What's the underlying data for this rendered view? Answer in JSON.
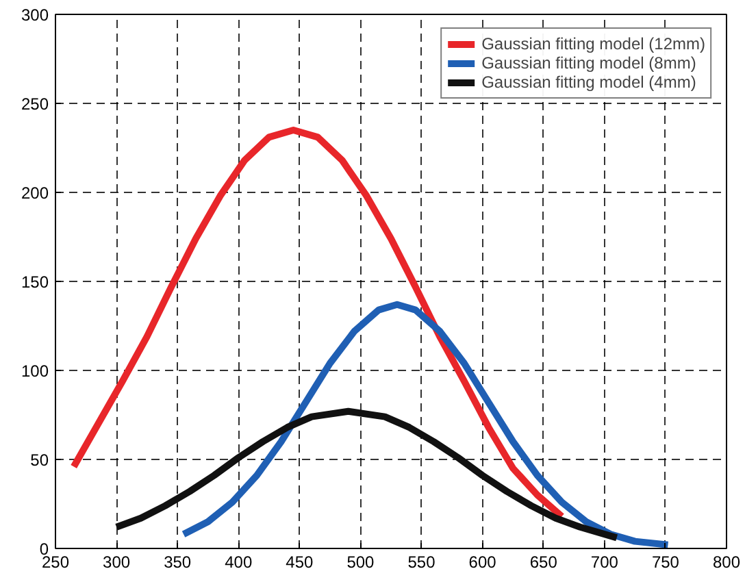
{
  "chart_data": {
    "type": "line",
    "xlim": [
      250,
      800
    ],
    "ylim": [
      0,
      300
    ],
    "xticks": [
      250,
      300,
      350,
      400,
      450,
      500,
      550,
      600,
      650,
      700,
      750,
      800
    ],
    "yticks": [
      0,
      50,
      100,
      150,
      200,
      250,
      300
    ],
    "grid": true,
    "legend": "top right",
    "line_style": "solid",
    "series": [
      {
        "name": "Gaussian fitting model (12mm)",
        "color": "#e8262a",
        "x": [
          265,
          285,
          305,
          325,
          345,
          365,
          385,
          405,
          425,
          445,
          465,
          485,
          505,
          525,
          545,
          565,
          585,
          605,
          625,
          645,
          665
        ],
        "values": [
          46,
          70,
          94,
          119,
          147,
          174,
          198,
          218,
          231,
          235,
          231,
          218,
          198,
          174,
          147,
          119,
          94,
          68,
          45,
          30,
          18
        ]
      },
      {
        "name": "Gaussian fitting model (8mm)",
        "color": "#1f5fb4",
        "x": [
          355,
          375,
          395,
          415,
          435,
          455,
          475,
          495,
          515,
          530,
          545,
          565,
          585,
          605,
          625,
          645,
          665,
          685,
          705,
          725,
          752
        ],
        "values": [
          8,
          15,
          26,
          41,
          60,
          82,
          104,
          122,
          134,
          137,
          134,
          122,
          104,
          82,
          60,
          41,
          26,
          15,
          8,
          4,
          2
        ]
      },
      {
        "name": "Gaussian fitting model (4mm)",
        "color": "#111111",
        "x": [
          300,
          320,
          340,
          360,
          380,
          400,
          420,
          440,
          460,
          490,
          520,
          540,
          560,
          580,
          600,
          620,
          640,
          660,
          680,
          710
        ],
        "values": [
          12,
          17,
          24,
          32,
          41,
          51,
          60,
          68,
          74,
          77,
          74,
          68,
          60,
          51,
          41,
          32,
          24,
          17,
          12,
          6
        ]
      }
    ]
  }
}
